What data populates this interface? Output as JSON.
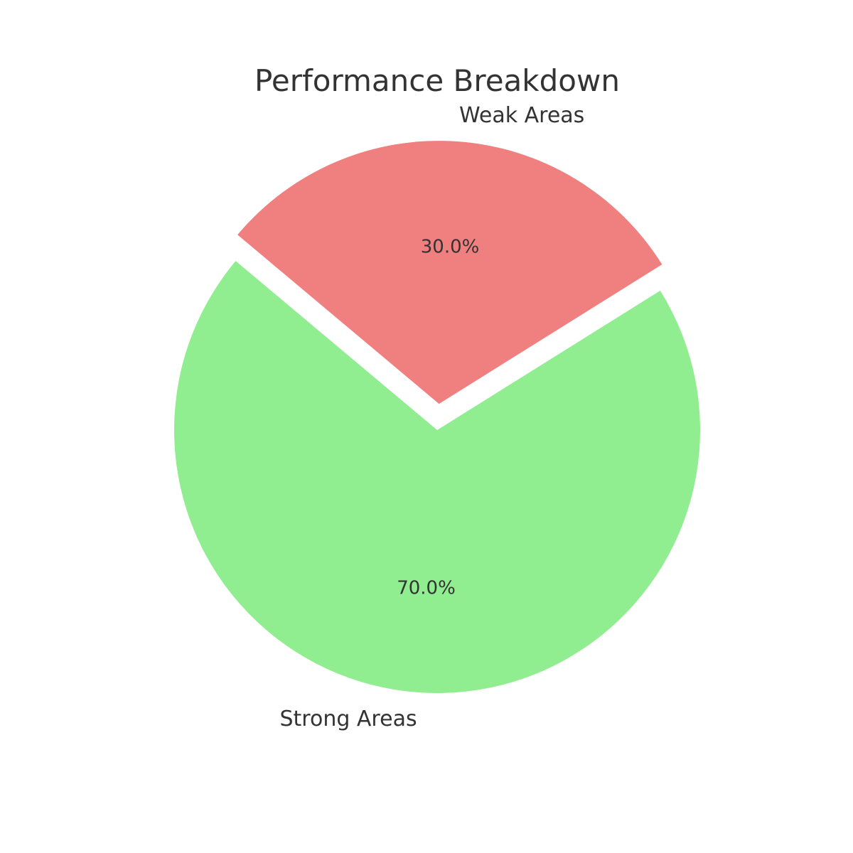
{
  "chart_data": {
    "type": "pie",
    "title": "Performance Breakdown",
    "categories": [
      "Strong Areas",
      "Weak Areas"
    ],
    "values": [
      70.0,
      30.0
    ],
    "percent_labels": [
      "70.0%",
      "30.0%"
    ],
    "colors": [
      "#90ee90",
      "#f08080"
    ],
    "exploded": [
      false,
      true
    ],
    "legend": "none"
  }
}
